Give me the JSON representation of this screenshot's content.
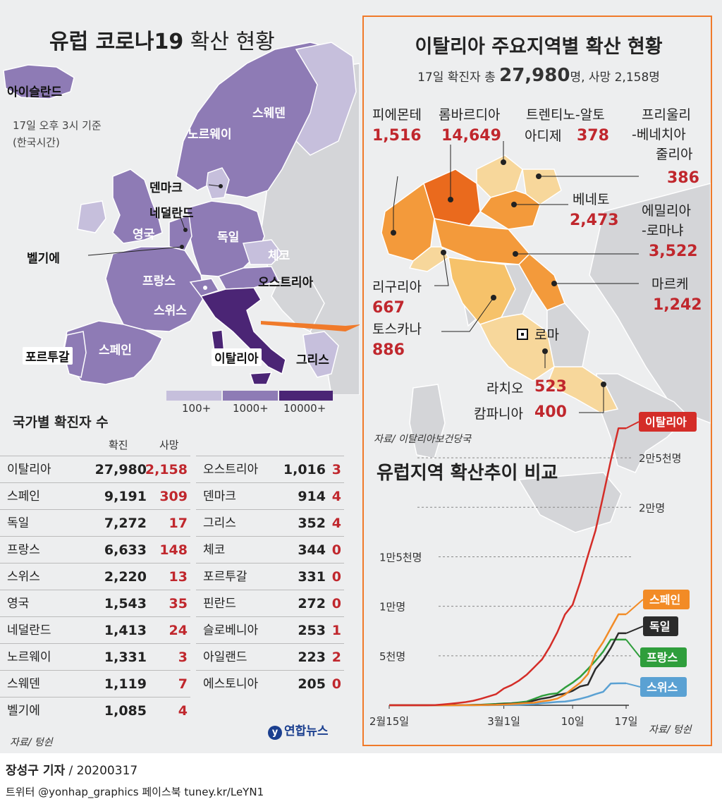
{
  "europe": {
    "title_bold": "유럽 코로나19",
    "title_light": " 확산 현황",
    "asof": [
      "17일 오후 3시 기준",
      "(한국시간)"
    ],
    "countries": {
      "iceland": "아이슬란드",
      "sweden": "스웨덴",
      "norway": "노르웨이",
      "denmark": "덴마크",
      "netherlands": "네덜란드",
      "uk": "영국",
      "germany": "독일",
      "belgium": "벨기에",
      "czech": "체코",
      "austria": "오스트리아",
      "france": "프랑스",
      "switzerland": "스위스",
      "italy": "이탈리아",
      "portugal": "포르투갈",
      "spain": "스페인",
      "greece": "그리스"
    },
    "legend": {
      "items": [
        "100+",
        "1000+",
        "10000+"
      ],
      "colors": [
        "#c6bfdc",
        "#8e7bb5",
        "#4b2575"
      ]
    },
    "colors": {
      "low": "#c6bfdc",
      "mid": "#8e7bb5",
      "high": "#4b2575",
      "none": "#d4d5d8",
      "sea": "#edeeef"
    }
  },
  "country_table": {
    "title": "국가별 확진자 수",
    "col_confirmed": "확진",
    "col_deaths": "사망",
    "left": [
      {
        "name": "이탈리아",
        "confirmed": "27,980",
        "deaths": "2,158"
      },
      {
        "name": "스페인",
        "confirmed": "9,191",
        "deaths": "309"
      },
      {
        "name": "독일",
        "confirmed": "7,272",
        "deaths": "17"
      },
      {
        "name": "프랑스",
        "confirmed": "6,633",
        "deaths": "148"
      },
      {
        "name": "스위스",
        "confirmed": "2,220",
        "deaths": "13"
      },
      {
        "name": "영국",
        "confirmed": "1,543",
        "deaths": "35"
      },
      {
        "name": "네덜란드",
        "confirmed": "1,413",
        "deaths": "24"
      },
      {
        "name": "노르웨이",
        "confirmed": "1,331",
        "deaths": "3"
      },
      {
        "name": "스웨덴",
        "confirmed": "1,119",
        "deaths": "7"
      },
      {
        "name": "벨기에",
        "confirmed": "1,085",
        "deaths": "4"
      }
    ],
    "right": [
      {
        "name": "오스트리아",
        "confirmed": "1,016",
        "deaths": "3"
      },
      {
        "name": "덴마크",
        "confirmed": "914",
        "deaths": "4"
      },
      {
        "name": "그리스",
        "confirmed": "352",
        "deaths": "4"
      },
      {
        "name": "체코",
        "confirmed": "344",
        "deaths": "0"
      },
      {
        "name": "포르투갈",
        "confirmed": "331",
        "deaths": "0"
      },
      {
        "name": "핀란드",
        "confirmed": "272",
        "deaths": "0"
      },
      {
        "name": "슬로베니아",
        "confirmed": "253",
        "deaths": "1"
      },
      {
        "name": "아일랜드",
        "confirmed": "223",
        "deaths": "2"
      },
      {
        "name": "에스토니아",
        "confirmed": "205",
        "deaths": "0"
      }
    ],
    "source": "자료/ 텅쉰"
  },
  "italy": {
    "title": "이탈리아 주요지역별 확산 현황",
    "sub_prefix": "17일 확진자 총 ",
    "sub_total": "27,980",
    "sub_suffix": "명, 사망 2,158명",
    "source": "자료/ 이탈리아보건당국",
    "capital": "로마",
    "regions": {
      "piemonte": {
        "name": "피에몬테",
        "value": "1,516"
      },
      "lombardia": {
        "name": "롬바르디아",
        "value": "14,649"
      },
      "trentino": {
        "name1": "트렌티노-알토",
        "name2": "아디제",
        "value": "378"
      },
      "friuli": {
        "name1": "프리울리",
        "name2": "-베네치아",
        "name3": "줄리아",
        "value": "386"
      },
      "veneto": {
        "name": "베네토",
        "value": "2,473"
      },
      "emilia": {
        "name1": "에밀리아",
        "name2": "-로마냐",
        "value": "3,522"
      },
      "marche": {
        "name": "마르케",
        "value": "1,242"
      },
      "liguria": {
        "name": "리구리아",
        "value": "667"
      },
      "toscana": {
        "name": "토스카나",
        "value": "886"
      },
      "lazio": {
        "name": "라치오",
        "value": "523"
      },
      "campania": {
        "name": "캄파니아",
        "value": "400"
      }
    },
    "region_colors": {
      "dark": "#ea6a1d",
      "mid": "#f39a3b",
      "light": "#f6c26a",
      "pale": "#f7d79b",
      "other": "#d4d5d8"
    }
  },
  "chart_data": {
    "type": "line",
    "title": "유럽지역 확산추이 비교",
    "source": "자료/ 텅쉰",
    "x_tick_labels": [
      "2월15일",
      "3월1일",
      "10일",
      "17일"
    ],
    "x": [
      "2/15",
      "2/16",
      "2/17",
      "2/18",
      "2/19",
      "2/20",
      "2/21",
      "2/22",
      "2/23",
      "2/24",
      "2/25",
      "2/26",
      "2/27",
      "2/28",
      "2/29",
      "3/1",
      "3/2",
      "3/3",
      "3/4",
      "3/5",
      "3/6",
      "3/7",
      "3/8",
      "3/9",
      "3/10",
      "3/11",
      "3/12",
      "3/13",
      "3/14",
      "3/15",
      "3/16",
      "3/17"
    ],
    "y_tick_labels": [
      "5천명",
      "1만명",
      "1만5천명",
      "2만명",
      "2만5천명"
    ],
    "y_ticks": [
      5000,
      10000,
      15000,
      20000,
      25000
    ],
    "ylim": [
      0,
      28500
    ],
    "grid": "dashed horizontal",
    "series": [
      {
        "name": "이탈리아",
        "color": "#d42d28",
        "values": [
          3,
          3,
          3,
          3,
          3,
          3,
          20,
          79,
          150,
          229,
          322,
          453,
          655,
          888,
          1128,
          1694,
          2036,
          2502,
          3089,
          3858,
          4636,
          5883,
          7375,
          9172,
          10149,
          12462,
          15113,
          17660,
          21157,
          24747,
          27980,
          27980
        ]
      },
      {
        "name": "스페인",
        "color": "#f28b26",
        "values": [
          2,
          2,
          2,
          2,
          2,
          2,
          2,
          2,
          2,
          2,
          6,
          13,
          15,
          32,
          45,
          84,
          120,
          165,
          222,
          259,
          400,
          500,
          673,
          1073,
          1695,
          2277,
          3146,
          5232,
          6391,
          7798,
          9191,
          9191
        ]
      },
      {
        "name": "독일",
        "color": "#2b2b2b",
        "values": [
          16,
          16,
          16,
          16,
          16,
          16,
          16,
          16,
          16,
          16,
          17,
          27,
          46,
          48,
          79,
          130,
          159,
          196,
          262,
          482,
          670,
          799,
          1040,
          1176,
          1457,
          1908,
          2078,
          3675,
          4585,
          5795,
          7272,
          7272
        ]
      },
      {
        "name": "프랑스",
        "color": "#2f9e3c",
        "values": [
          12,
          12,
          12,
          12,
          12,
          12,
          12,
          12,
          12,
          14,
          18,
          38,
          57,
          100,
          130,
          191,
          204,
          285,
          377,
          653,
          949,
          1126,
          1209,
          1784,
          2281,
          2876,
          3661,
          4499,
          5423,
          6633,
          6633,
          6633
        ]
      },
      {
        "name": "스위스",
        "color": "#5aa1d3",
        "values": [
          0,
          0,
          0,
          0,
          0,
          0,
          0,
          0,
          0,
          0,
          1,
          1,
          8,
          8,
          18,
          27,
          42,
          56,
          90,
          114,
          214,
          268,
          337,
          374,
          491,
          652,
          858,
          1125,
          1359,
          2200,
          2220,
          2220
        ]
      }
    ]
  },
  "footer": {
    "reporter": "장성구 기자",
    "sep": " / ",
    "date": "20200317",
    "social": "트위터 @yonhap_graphics  페이스북 tuney.kr/LeYN1",
    "logo": "연합뉴스"
  }
}
